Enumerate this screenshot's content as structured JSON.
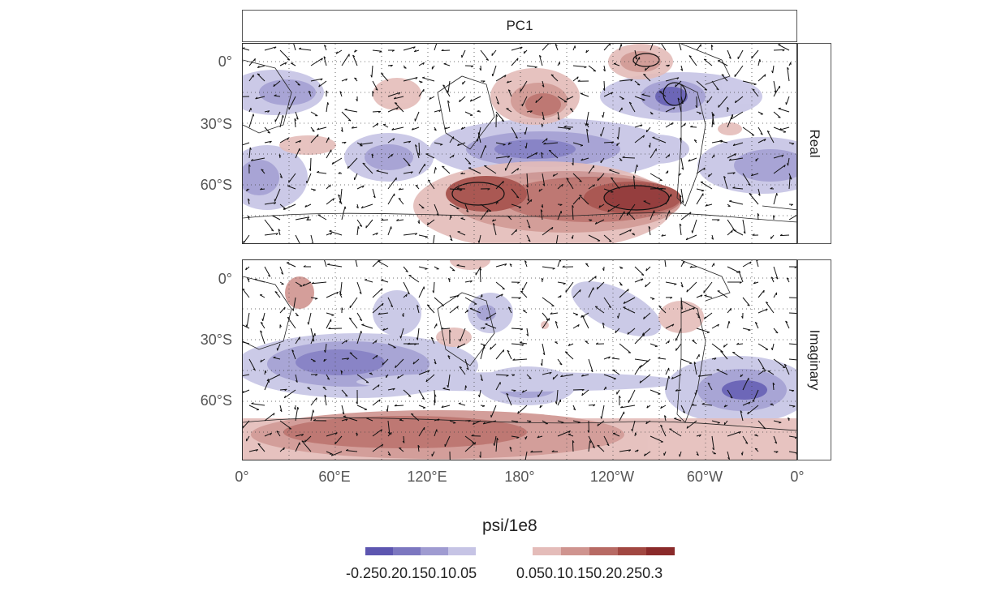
{
  "strip_title": "PC1",
  "panels": [
    {
      "label": "Real"
    },
    {
      "label": "Imaginary"
    }
  ],
  "y_ticks": [
    "0°",
    "30°S",
    "60°S"
  ],
  "x_ticks": [
    "0°",
    "60°E",
    "120°E",
    "180°",
    "120°W",
    "60°W",
    "0°"
  ],
  "legend": {
    "title": "psi/1e8",
    "neg_label": "-0.25 0.2 0.15 0.1 0.05",
    "neg_label_display": "-0.250.20.150.10.05",
    "pos_label": "0.050.10.150.20.250.3",
    "neg_colors": [
      "#5d56b0",
      "#7c77c0",
      "#9f9bd1",
      "#c6c4e5"
    ],
    "pos_colors": [
      "#e4bcb9",
      "#cf948f",
      "#b76a64",
      "#a14741",
      "#8a2a2a"
    ]
  },
  "colors": {
    "neg_dark": "#5d56b0",
    "neg_mid": "#8c88c8",
    "neg_light": "#c6c4e5",
    "pos_light": "#e4bcb9",
    "pos_mid": "#c48781",
    "pos_dark": "#8a2a2a"
  }
}
